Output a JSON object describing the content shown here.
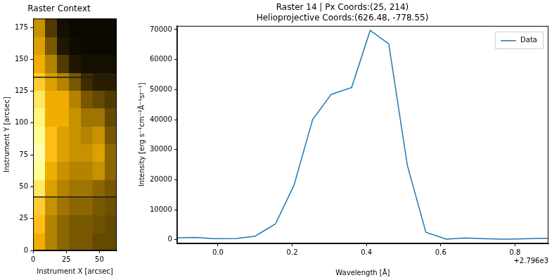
{
  "chart_data": [
    {
      "type": "heatmap",
      "title": "Raster Context",
      "x_label": "Instrument X [arcsec]",
      "y_label": "Instrument Y [arcsec]",
      "xlim": [
        0,
        63
      ],
      "ylim": [
        0,
        182
      ],
      "xticks": [
        0,
        25,
        50
      ],
      "yticks": [
        0,
        25,
        50,
        75,
        100,
        125,
        150,
        175
      ],
      "grid": false,
      "x_edges": [
        0,
        9,
        18,
        27,
        36,
        45,
        54,
        63
      ],
      "y_edges": [
        0,
        14,
        28,
        42,
        56,
        70,
        84,
        98,
        112,
        126,
        140,
        154,
        168,
        182
      ],
      "cells": [
        [
          0.6,
          0.45,
          0.35,
          0.3,
          0.3,
          0.25,
          0.25
        ],
        [
          0.65,
          0.45,
          0.35,
          0.3,
          0.3,
          0.28,
          0.25
        ],
        [
          0.7,
          0.5,
          0.4,
          0.35,
          0.35,
          0.3,
          0.28
        ],
        [
          0.8,
          0.55,
          0.45,
          0.4,
          0.4,
          0.35,
          0.3
        ],
        [
          0.9,
          0.6,
          0.5,
          0.45,
          0.45,
          0.5,
          0.35
        ],
        [
          0.95,
          0.65,
          0.55,
          0.5,
          0.5,
          0.55,
          0.35
        ],
        [
          0.9,
          0.65,
          0.55,
          0.5,
          0.45,
          0.5,
          0.3
        ],
        [
          0.85,
          0.6,
          0.6,
          0.5,
          0.4,
          0.4,
          0.25
        ],
        [
          0.8,
          0.6,
          0.6,
          0.45,
          0.3,
          0.25,
          0.2
        ],
        [
          0.7,
          0.55,
          0.45,
          0.3,
          0.15,
          0.1,
          0.1
        ],
        [
          0.6,
          0.45,
          0.2,
          0.08,
          0.05,
          0.05,
          0.05
        ],
        [
          0.55,
          0.3,
          0.08,
          0.04,
          0.03,
          0.03,
          0.03
        ],
        [
          0.5,
          0.2,
          0.05,
          0.03,
          0.03,
          0.03,
          0.03
        ]
      ],
      "hlines": [
        136,
        42
      ],
      "points": {
        "x": [
          50
        ],
        "y": [
          71
        ],
        "color": "#ff9900",
        "marker": "x"
      }
    },
    {
      "type": "line",
      "title": "Raster 14 | Px Coords:(25, 214)",
      "subtitle": "Helioprojective Coords:(626.48, -778.55)",
      "x_label": "Wavelength [Å]",
      "y_label": "Intensity [erg s⁻¹cm⁻²Å⁻¹sr⁻¹]",
      "x_offset_text": "+2.796e3",
      "xlim": [
        2795.89,
        2796.89
      ],
      "ylim": [
        -1200,
        71200
      ],
      "xticks": [
        {
          "value": 2796.0,
          "label": "0.0"
        },
        {
          "value": 2796.2,
          "label": "0.2"
        },
        {
          "value": 2796.4,
          "label": "0.4"
        },
        {
          "value": 2796.6,
          "label": "0.6"
        },
        {
          "value": 2796.8,
          "label": "0.8"
        }
      ],
      "yticks": [
        0,
        10000,
        20000,
        30000,
        40000,
        50000,
        60000,
        70000
      ],
      "grid": false,
      "legend": "upper right",
      "x": [
        2795.89,
        2795.94,
        2795.99,
        2796.05,
        2796.1,
        2796.155,
        2796.205,
        2796.255,
        2796.305,
        2796.36,
        2796.41,
        2796.46,
        2796.51,
        2796.56,
        2796.615,
        2796.665,
        2796.715,
        2796.77,
        2796.82,
        2796.87,
        2796.89
      ],
      "series": [
        {
          "name": "Data",
          "color": "#1f77b4",
          "values": [
            700,
            800,
            400,
            450,
            1200,
            5300,
            18200,
            40000,
            48400,
            50700,
            69700,
            65200,
            24800,
            2500,
            200,
            600,
            400,
            200,
            300,
            500,
            500
          ]
        }
      ]
    }
  ]
}
